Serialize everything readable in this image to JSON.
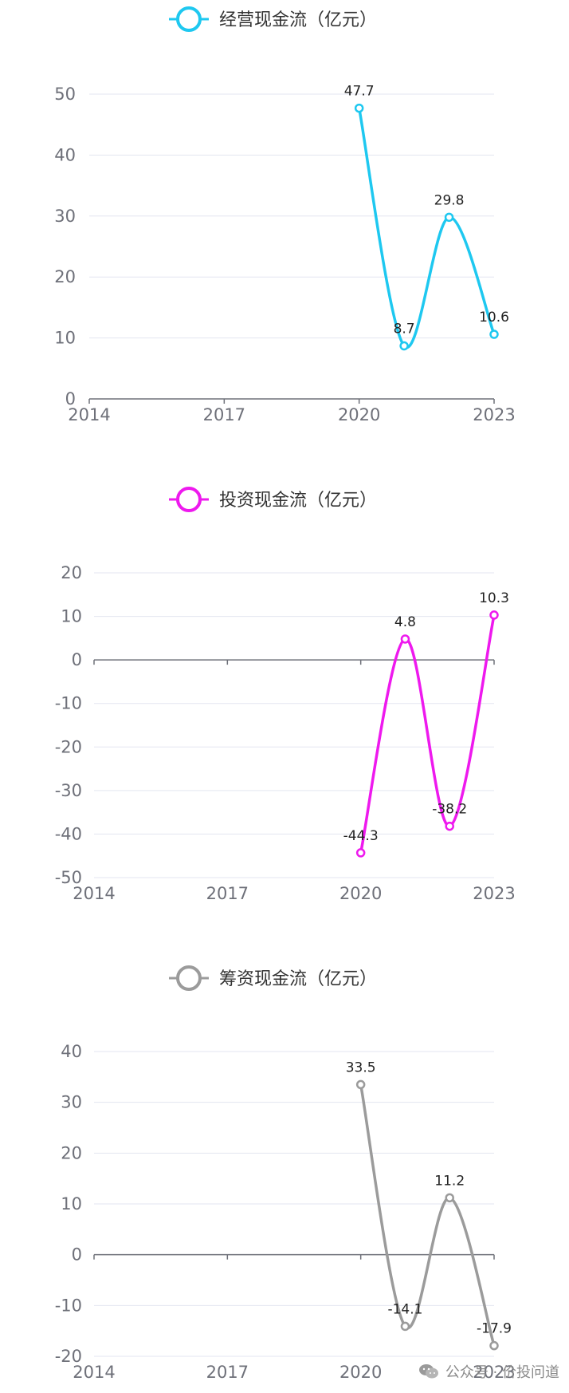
{
  "watermark": {
    "text": "公众号 · 价投问道",
    "icon": "wechat-icon"
  },
  "chart_data": [
    {
      "type": "line",
      "title": "",
      "legend": "经营现金流（亿元）",
      "legend_position": "top-center",
      "color": "#1ec8f0",
      "x_ticks": [
        "2014",
        "2017",
        "2020",
        "2023"
      ],
      "x": [
        2020,
        2021,
        2022,
        2023
      ],
      "values": [
        47.7,
        8.7,
        29.8,
        10.6
      ],
      "labels": [
        "47.7",
        "8.7",
        "29.8",
        "10.6"
      ],
      "ylim": [
        0,
        50
      ],
      "y_ticks": [
        "0",
        "10",
        "20",
        "30",
        "40",
        "50"
      ],
      "xlim": [
        2014,
        2023
      ],
      "grid": true
    },
    {
      "type": "line",
      "title": "",
      "legend": "投资现金流（亿元）",
      "legend_position": "top-center",
      "color": "#ee19ee",
      "x_ticks": [
        "2014",
        "2017",
        "2020",
        "2023"
      ],
      "x": [
        2020,
        2021,
        2022,
        2023
      ],
      "values": [
        -44.3,
        4.8,
        -38.2,
        10.3
      ],
      "labels": [
        "-44.3",
        "4.8",
        "-38.2",
        "10.3"
      ],
      "ylim": [
        -50,
        20
      ],
      "y_ticks": [
        "-50",
        "-40",
        "-30",
        "-20",
        "-10",
        "0",
        "10",
        "20"
      ],
      "xlim": [
        2014,
        2023
      ],
      "grid": true
    },
    {
      "type": "line",
      "title": "",
      "legend": "筹资现金流（亿元）",
      "legend_position": "top-center",
      "color": "#9b9b9b",
      "x_ticks": [
        "2014",
        "2017",
        "2020",
        "2023"
      ],
      "x": [
        2020,
        2021,
        2022,
        2023
      ],
      "values": [
        33.5,
        -14.1,
        11.2,
        -17.9
      ],
      "labels": [
        "33.5",
        "-14.1",
        "11.2",
        "-17.9"
      ],
      "ylim": [
        -20,
        40
      ],
      "y_ticks": [
        "-20",
        "-10",
        "0",
        "10",
        "20",
        "30",
        "40"
      ],
      "xlim": [
        2014,
        2023
      ],
      "grid": true
    }
  ]
}
